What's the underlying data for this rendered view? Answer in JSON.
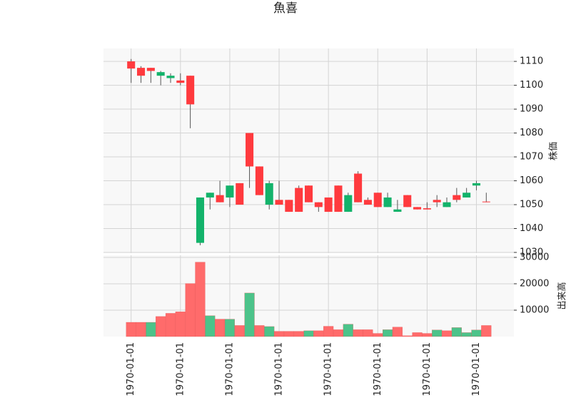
{
  "chart_data": {
    "type": "candlestick",
    "title": "魚喜",
    "y_label": "株価",
    "volume_label": "出来高",
    "categories": [
      "1970-01-01",
      null,
      null,
      null,
      null,
      "1970-01-01",
      null,
      null,
      null,
      null,
      "1970-01-01",
      null,
      null,
      null,
      null,
      "1970-01-01",
      null,
      null,
      null,
      null,
      "1970-01-01",
      null,
      null,
      null,
      null,
      "1970-01-01",
      null,
      null,
      null,
      null,
      "1970-01-01",
      null,
      null,
      null,
      null,
      "1970-01-01",
      null
    ],
    "open": [
      1107,
      1104,
      1106,
      1105.5,
      1104,
      1101,
      1092,
      1053,
      1055,
      1051,
      1058,
      1050,
      1066,
      1054,
      1059,
      1050,
      1047,
      1047,
      1051,
      1049,
      1047,
      1047,
      1054,
      1051,
      1050,
      1049,
      1053,
      1048,
      1049,
      1048,
      1048,
      1051,
      1051,
      1052,
      1055,
      1059,
      1051
    ],
    "high": [
      1111,
      1108,
      1107.3,
      1106,
      1105,
      1105,
      1104,
      1053,
      1055,
      1060,
      1058,
      1059,
      1080,
      1066,
      1060,
      1060,
      1052,
      1058,
      1058,
      1051,
      1053,
      1058,
      1055,
      1064,
      1053,
      1055,
      1055,
      1052,
      1054,
      1049,
      1051,
      1054,
      1053,
      1057,
      1057,
      1060,
      1055
    ],
    "low": [
      1101,
      1101,
      1101,
      1100,
      1101,
      1100,
      1082,
      1033,
      1048,
      1051,
      1049,
      1050,
      1057,
      1054,
      1048,
      1050,
      1047,
      1047,
      1051,
      1047,
      1047,
      1047,
      1047,
      1051,
      1050,
      1049,
      1049,
      1047,
      1049,
      1048,
      1048,
      1049,
      1049,
      1051,
      1053,
      1056,
      1051
    ],
    "close": [
      1110,
      1107.3,
      1107.3,
      1104,
      1103,
      1102,
      1104,
      1034,
      1053,
      1054,
      1053,
      1059,
      1080,
      1066,
      1050,
      1052,
      1052,
      1057,
      1058,
      1051,
      1053,
      1058,
      1047,
      1063,
      1052,
      1055,
      1049,
      1047,
      1054,
      1049,
      1048.5,
      1052,
      1049,
      1054,
      1053,
      1058,
      1051.3
    ],
    "volume": [
      5400,
      5400,
      5400,
      7600,
      8800,
      9400,
      20100,
      28200,
      7900,
      6600,
      6600,
      4200,
      16500,
      4200,
      3800,
      2000,
      2000,
      2000,
      2200,
      2200,
      3900,
      2600,
      4700,
      2600,
      2600,
      1200,
      2600,
      3600,
      300,
      1500,
      1200,
      2500,
      2200,
      3400,
      1500,
      2500,
      4200
    ],
    "volume_colors": [
      "#ff6b6b",
      "#ff6b6b",
      "#4cc38a",
      "#ff6b6b",
      "#ff6b6b",
      "#ff6b6b",
      "#ff6b6b",
      "#ff6b6b",
      "#4cc38a",
      "#ff6b6b",
      "#4cc38a",
      "#ff6b6b",
      "#4cc38a",
      "#ff6b6b",
      "#4cc38a",
      "#ff6b6b",
      "#ff6b6b",
      "#ff6b6b",
      "#4cc38a",
      "#ff6b6b",
      "#ff6b6b",
      "#ff6b6b",
      "#4cc38a",
      "#ff6b6b",
      "#ff6b6b",
      "#ff6b6b",
      "#4cc38a",
      "#ff6b6b",
      "#ff6b6b",
      "#ff6b6b",
      "#ff6b6b",
      "#4cc38a",
      "#ff6b6b",
      "#4cc38a",
      "#4cc38a",
      "#4cc38a",
      "#ff6b6b"
    ],
    "up_color": "#ff3a3e",
    "down_color": "#13b36b",
    "wick_color": "#555555",
    "xlim": [
      -2.8,
      38.8
    ],
    "ylim": [
      1029.7,
      1115.4
    ],
    "yticks": [
      1030,
      1040,
      1050,
      1060,
      1070,
      1080,
      1090,
      1100,
      1110
    ],
    "volume_ylim": [
      0,
      30800
    ],
    "volume_yticks": [
      10000,
      20000,
      30000
    ],
    "grid": true
  }
}
